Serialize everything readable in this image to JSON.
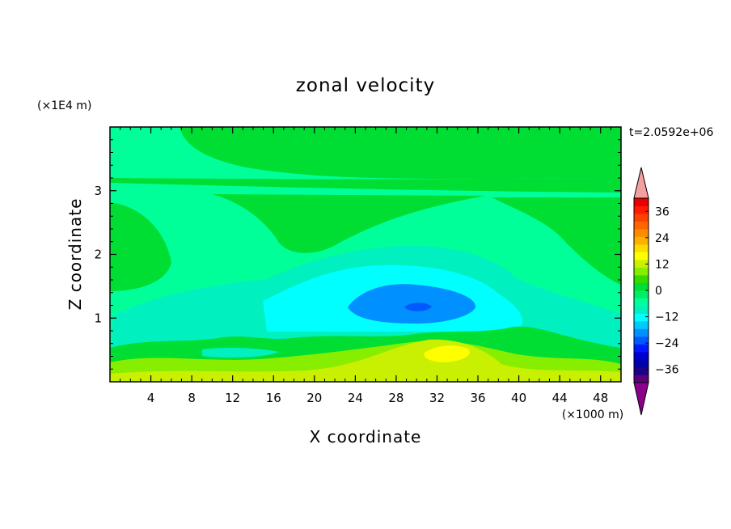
{
  "chart_data": {
    "type": "heatmap",
    "title": "zonal velocity",
    "xlabel": "X coordinate",
    "ylabel": "Z coordinate",
    "x_scale_label": "(×1000 m)",
    "y_scale_label": "(×1E4 m)",
    "time_label": "t=2.0592e+06",
    "xlim": [
      0,
      50
    ],
    "ylim": [
      0,
      4
    ],
    "x_ticks": [
      4,
      8,
      12,
      16,
      20,
      24,
      28,
      32,
      36,
      40,
      44,
      48
    ],
    "y_ticks": [
      1,
      2,
      3
    ],
    "colorbar": {
      "levels": [
        -42,
        -39,
        -36,
        -33,
        -30,
        -27,
        -24,
        -21,
        -18,
        -15,
        -12,
        -9,
        -6,
        -3,
        0,
        3,
        6,
        9,
        12,
        15,
        18,
        21,
        24,
        27,
        30,
        33,
        36,
        39,
        42
      ],
      "tick_values": [
        36,
        24,
        12,
        0,
        -12,
        -24,
        -36
      ],
      "tick_labels": [
        "36",
        "24",
        "12",
        "0",
        "−12",
        "−24",
        "−36"
      ],
      "colors": [
        "#5c007a",
        "#1f0088",
        "#0000a8",
        "#0000d0",
        "#0018ff",
        "#0058ff",
        "#0090ff",
        "#00c8ff",
        "#00ffff",
        "#00f0c0",
        "#00ff99",
        "#00ee66",
        "#00dd33",
        "#33dd00",
        "#88ee00",
        "#c8f000",
        "#ffff00",
        "#ffdc00",
        "#ffb000",
        "#ff8c00",
        "#ff6600",
        "#ff4000",
        "#ff1a00",
        "#e80000"
      ],
      "extend_low_color": "#8b008b",
      "extend_high_color": "#f4a0a0"
    },
    "field_description_points": [
      {
        "x": 30,
        "z": 1.1,
        "value": -18
      },
      {
        "x": 32,
        "z": 0.4,
        "value": 15
      },
      {
        "x": 14,
        "z": 3.7,
        "value": 3
      },
      {
        "x": 3,
        "z": 2.2,
        "value": 3
      },
      {
        "x": 20,
        "z": 2.0,
        "value": -3
      }
    ]
  }
}
